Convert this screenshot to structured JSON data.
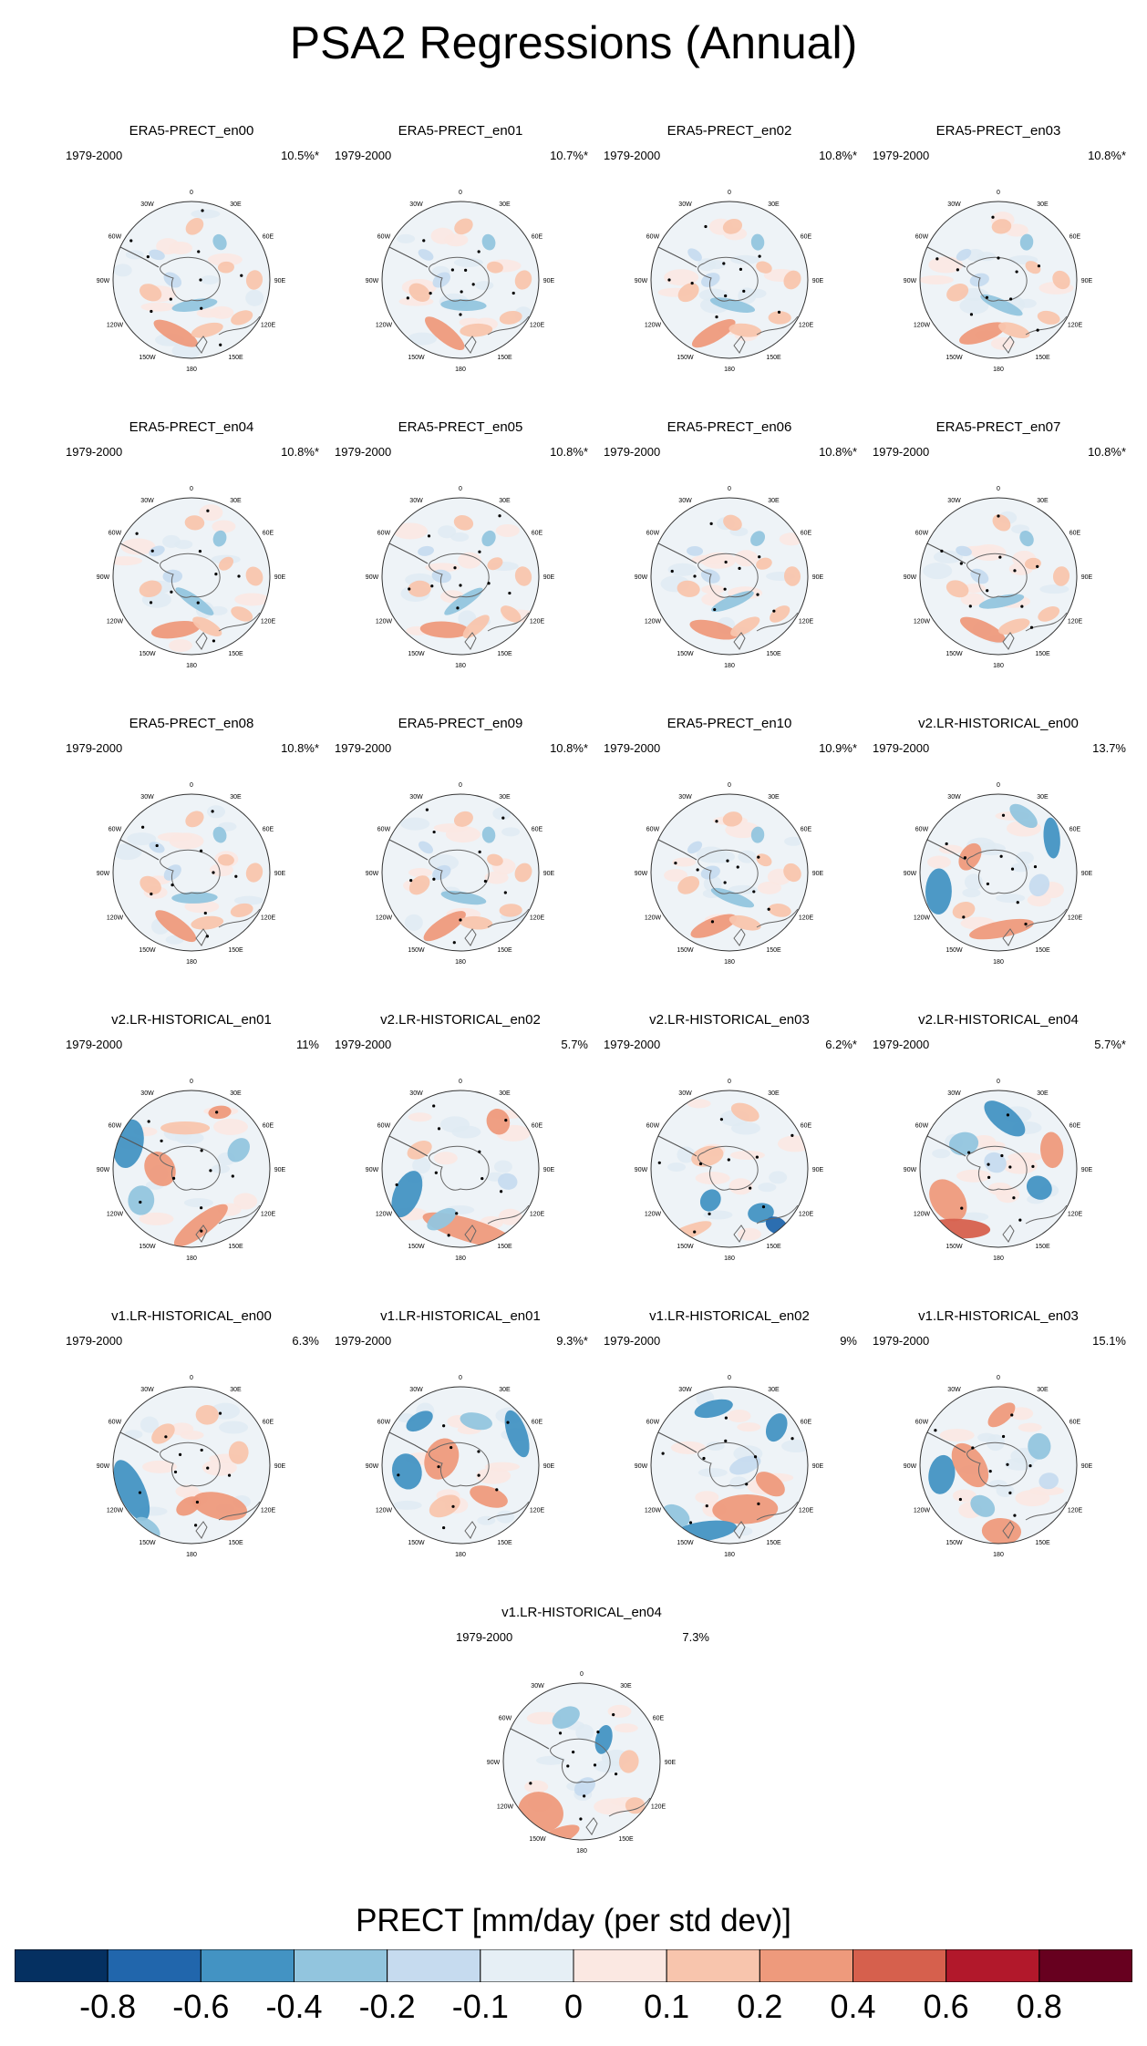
{
  "title": "PSA2 Regressions (Annual)",
  "panels": [
    {
      "name": "ERA5-PRECT_en00",
      "years": "1979-2000",
      "pct": "10.5%*",
      "style": "era"
    },
    {
      "name": "ERA5-PRECT_en01",
      "years": "1979-2000",
      "pct": "10.7%*",
      "style": "era"
    },
    {
      "name": "ERA5-PRECT_en02",
      "years": "1979-2000",
      "pct": "10.8%*",
      "style": "era"
    },
    {
      "name": "ERA5-PRECT_en03",
      "years": "1979-2000",
      "pct": "10.8%*",
      "style": "era"
    },
    {
      "name": "ERA5-PRECT_en04",
      "years": "1979-2000",
      "pct": "10.8%*",
      "style": "era"
    },
    {
      "name": "ERA5-PRECT_en05",
      "years": "1979-2000",
      "pct": "10.8%*",
      "style": "era"
    },
    {
      "name": "ERA5-PRECT_en06",
      "years": "1979-2000",
      "pct": "10.8%*",
      "style": "era"
    },
    {
      "name": "ERA5-PRECT_en07",
      "years": "1979-2000",
      "pct": "10.8%*",
      "style": "era"
    },
    {
      "name": "ERA5-PRECT_en08",
      "years": "1979-2000",
      "pct": "10.8%*",
      "style": "era"
    },
    {
      "name": "ERA5-PRECT_en09",
      "years": "1979-2000",
      "pct": "10.8%*",
      "style": "era"
    },
    {
      "name": "ERA5-PRECT_en10",
      "years": "1979-2000",
      "pct": "10.9%*",
      "style": "era"
    },
    {
      "name": "v2.LR-HISTORICAL_en00",
      "years": "1979-2000",
      "pct": "13.7%",
      "style": "v2a"
    },
    {
      "name": "v2.LR-HISTORICAL_en01",
      "years": "1979-2000",
      "pct": "11%",
      "style": "v2b"
    },
    {
      "name": "v2.LR-HISTORICAL_en02",
      "years": "1979-2000",
      "pct": "5.7%",
      "style": "v2c"
    },
    {
      "name": "v2.LR-HISTORICAL_en03",
      "years": "1979-2000",
      "pct": "6.2%*",
      "style": "v2d"
    },
    {
      "name": "v2.LR-HISTORICAL_en04",
      "years": "1979-2000",
      "pct": "5.7%*",
      "style": "v2e"
    },
    {
      "name": "v1.LR-HISTORICAL_en00",
      "years": "1979-2000",
      "pct": "6.3%",
      "style": "v1a"
    },
    {
      "name": "v1.LR-HISTORICAL_en01",
      "years": "1979-2000",
      "pct": "9.3%*",
      "style": "v1b"
    },
    {
      "name": "v1.LR-HISTORICAL_en02",
      "years": "1979-2000",
      "pct": "9%",
      "style": "v1c"
    },
    {
      "name": "v1.LR-HISTORICAL_en03",
      "years": "1979-2000",
      "pct": "15.1%",
      "style": "v1d"
    },
    {
      "name": "v1.LR-HISTORICAL_en04",
      "years": "1979-2000",
      "pct": "7.3%",
      "style": "v1e"
    }
  ],
  "longitude_labels": [
    "0",
    "30E",
    "60E",
    "90E",
    "120E",
    "150E",
    "180",
    "150W",
    "120W",
    "90W",
    "60W",
    "30W"
  ],
  "colorbar": {
    "title": "PRECT [mm/day (per std dev)]",
    "colors": [
      "#053061",
      "#2166ac",
      "#4393c3",
      "#92c5de",
      "#c6dbef",
      "#e6eff5",
      "#fbe8e2",
      "#f8c5ad",
      "#ee9a7c",
      "#d6604d",
      "#b2182b",
      "#67001f"
    ],
    "ticks": [
      "-0.8",
      "-0.6",
      "-0.4",
      "-0.2",
      "-0.1",
      "0",
      "0.1",
      "0.2",
      "0.4",
      "0.6",
      "0.8"
    ]
  }
}
